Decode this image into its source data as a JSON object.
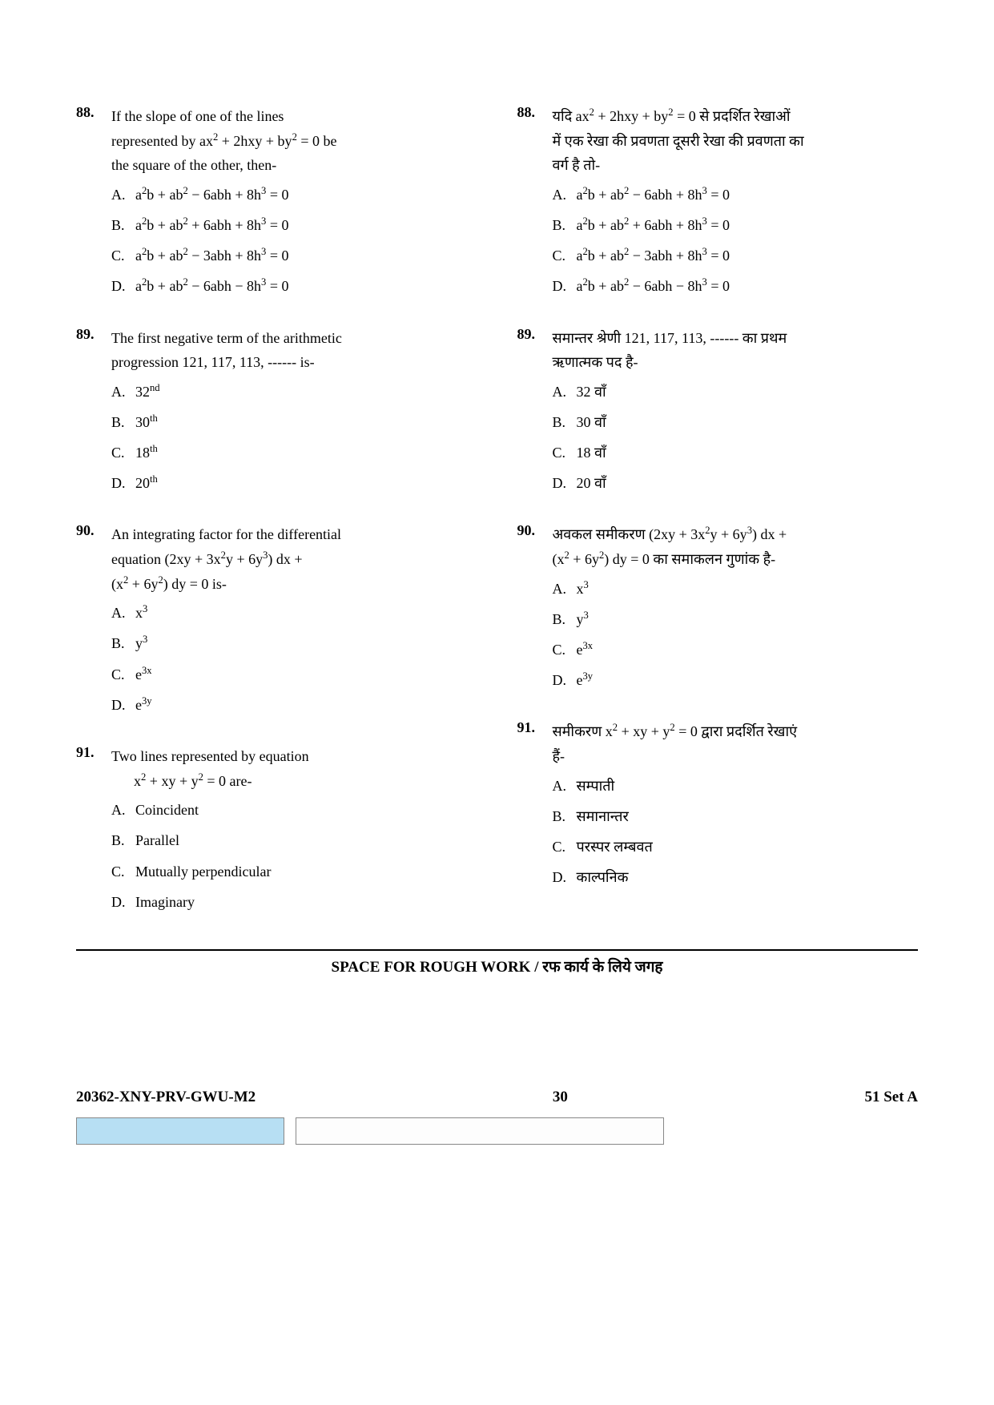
{
  "left": {
    "q88": {
      "num": "88.",
      "line1": "If the slope of one of the lines",
      "line2_pre": "represented by  ",
      "line2_eq": "ax<sup class='sup'>2</sup> + 2hxy + by<sup class='sup'>2</sup> = 0",
      "line2_post": "  be",
      "line3": "the square of the other, then-",
      "A": "a<sup class='sup'>2</sup>b + ab<sup class='sup'>2</sup> − 6abh + 8h<sup class='sup'>3</sup> = 0",
      "B": "a<sup class='sup'>2</sup>b + ab<sup class='sup'>2</sup> + 6abh + 8h<sup class='sup'>3</sup> = 0",
      "C": "a<sup class='sup'>2</sup>b + ab<sup class='sup'>2</sup> − 3abh + 8h<sup class='sup'>3</sup> = 0",
      "D": "a<sup class='sup'>2</sup>b + ab<sup class='sup'>2</sup> − 6abh − 8h<sup class='sup'>3</sup> = 0"
    },
    "q89": {
      "num": "89.",
      "line1": "The first negative term of the arithmetic",
      "line2": "progression 121, 117, 113, ------ is-",
      "A": "32<sup class='sup'>nd</sup>",
      "B": "30<sup class='sup'>th</sup>",
      "C": "18<sup class='sup'>th</sup>",
      "D": "20<sup class='sup'>th</sup>"
    },
    "q90": {
      "num": "90.",
      "line1": "An integrating factor for the differential",
      "line2": "equation  (2xy + 3x<sup class='sup'>2</sup>y + 6y<sup class='sup'>3</sup>) dx +",
      "line3": "(x<sup class='sup'>2</sup> + 6y<sup class='sup'>2</sup>) dy = 0   is-",
      "A": "x<sup class='sup'>3</sup>",
      "B": "y<sup class='sup'>3</sup>",
      "C": "e<sup class='sup'>3x</sup>",
      "D": "e<sup class='sup'>3y</sup>"
    },
    "q91": {
      "num": "91.",
      "line1": "Two lines represented by equation",
      "line2": "x<sup class='sup'>2</sup> + xy + y<sup class='sup'>2</sup> = 0  are-",
      "A": "Coincident",
      "B": "Parallel",
      "C": "Mutually perpendicular",
      "D": "Imaginary"
    }
  },
  "right": {
    "q88": {
      "num": "88.",
      "line1_pre": "यदि ",
      "line1_eq": "ax<sup class='sup'>2</sup> + 2hxy + by<sup class='sup'>2</sup> = 0",
      "line1_post": " से प्रदर्शित रेखाओं",
      "line2": "में एक रेखा की प्रवणता दूसरी रेखा की प्रवणता का",
      "line3": "वर्ग है तो-",
      "A": "a<sup class='sup'>2</sup>b + ab<sup class='sup'>2</sup> − 6abh + 8h<sup class='sup'>3</sup> = 0",
      "B": "a<sup class='sup'>2</sup>b + ab<sup class='sup'>2</sup> + 6abh + 8h<sup class='sup'>3</sup> = 0",
      "C": "a<sup class='sup'>2</sup>b + ab<sup class='sup'>2</sup> − 3abh + 8h<sup class='sup'>3</sup> = 0",
      "D": "a<sup class='sup'>2</sup>b + ab<sup class='sup'>2</sup> − 6abh − 8h<sup class='sup'>3</sup> = 0"
    },
    "q89": {
      "num": "89.",
      "line1": "समान्तर श्रेणी 121, 117, 113, ------ का प्रथम",
      "line2": "ऋणात्मक पद है-",
      "A": "32 वाँ",
      "B": "30 वाँ",
      "C": "18 वाँ",
      "D": "20 वाँ"
    },
    "q90": {
      "num": "90.",
      "line1": "अवकल समीकरण  (2xy + 3x<sup class='sup'>2</sup>y + 6y<sup class='sup'>3</sup>) dx +",
      "line2": "(x<sup class='sup'>2</sup> + 6y<sup class='sup'>2</sup>) dy = 0   का समाकलन गुणांक है-",
      "A": "x<sup class='sup'>3</sup>",
      "B": "y<sup class='sup'>3</sup>",
      "C": "e<sup class='sup'>3x</sup>",
      "D": "e<sup class='sup'>3y</sup>"
    },
    "q91": {
      "num": "91.",
      "line1_pre": "समीकरण  ",
      "line1_eq": "x<sup class='sup'>2</sup> + xy + y<sup class='sup'>2</sup> = 0",
      "line1_post": "  द्वारा प्रदर्शित रेखाएं",
      "line2": "हैं-",
      "A": "सम्पाती",
      "B": "समानान्तर",
      "C": "परस्पर लम्बवत",
      "D": "काल्पनिक"
    }
  },
  "rough_label": "SPACE FOR ROUGH WORK / रफ कार्य के लिये जगह",
  "footer": {
    "code": "20362-XNY-PRV-GWU-M2",
    "page": "30",
    "set": "51  Set A"
  },
  "opt_labels": {
    "A": "A.",
    "B": "B.",
    "C": "C.",
    "D": "D."
  },
  "colors": {
    "omr_blue": "#b7dff3"
  }
}
